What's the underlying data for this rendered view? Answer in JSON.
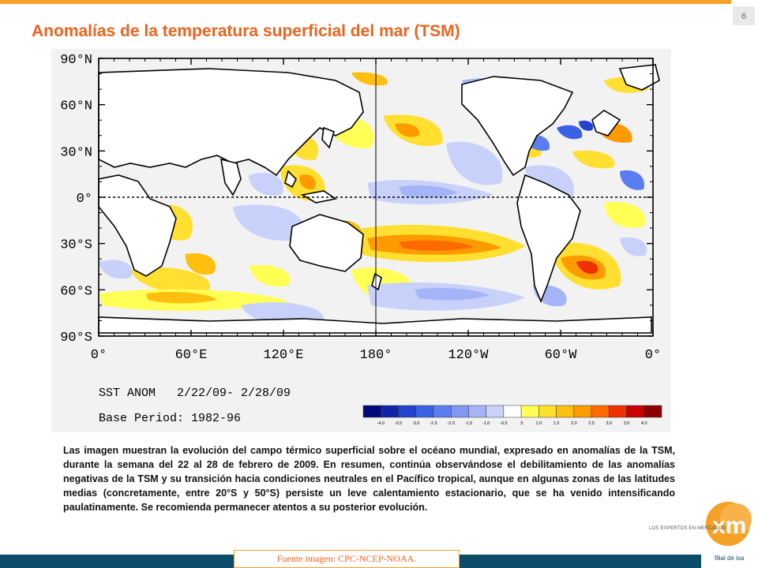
{
  "page_number": "6",
  "title": "Anomalías de la temperatura superficial del mar (TSM)",
  "chart_data": {
    "type": "heatmap",
    "subtitle": "SST ANOM   2/22/09- 2/28/09",
    "base_period": "Base Period: 1982-96",
    "y_tick_labels": [
      "90°N",
      "60°N",
      "30°N",
      "0°",
      "30°S",
      "60°S",
      "90°S"
    ],
    "x_tick_labels": [
      "0°",
      "60°E",
      "120°E",
      "180°",
      "120°W",
      "60°W",
      "0°"
    ],
    "colorbar": {
      "labels": [
        "-4.0",
        "-3.5",
        "-3.0",
        "-2.5",
        "-2.0",
        "-1.5",
        "-1.0",
        "-0.5",
        ".5",
        "1.0",
        "1.5",
        "2.0",
        "2.5",
        "3.0",
        "3.5",
        "4.0"
      ],
      "colors": [
        "#000a7a",
        "#0f25a8",
        "#2444cf",
        "#3b62e6",
        "#5a7ef0",
        "#7f99f3",
        "#a4b4f6",
        "#c8d1fa",
        "#ffffff",
        "#ffff55",
        "#ffe02a",
        "#ffbf10",
        "#ff9a00",
        "#ff6a00",
        "#ef3000",
        "#c80000",
        "#8a0000"
      ]
    }
  },
  "body_text": "Las imagen muestran la evolución del campo térmico superficial sobre el océano mundial, expresado en anomalías de la TSM, durante la semana del 22 al 28 de febrero de 2009. En resumen, continúa observándose el debilitamiento de las anomalías negativas de la TSM y su transición hacia condiciones neutrales en el Pacífico tropical, aunque en algunas zonas de las latitudes medias (concretamente, entre 20°S y 50°S) persiste un leve calentamiento estacionario, que se ha venido intensificando paulatinamente. Se recomienda permanecer atentos a su posterior evolución.",
  "source": "Fuente imagen: CPC-NCEP-NOAA.",
  "logo": {
    "mark": "xm",
    "tagline": "LOS EXPERTOS EN MERCADOS",
    "subtitle": "filial de isa"
  }
}
